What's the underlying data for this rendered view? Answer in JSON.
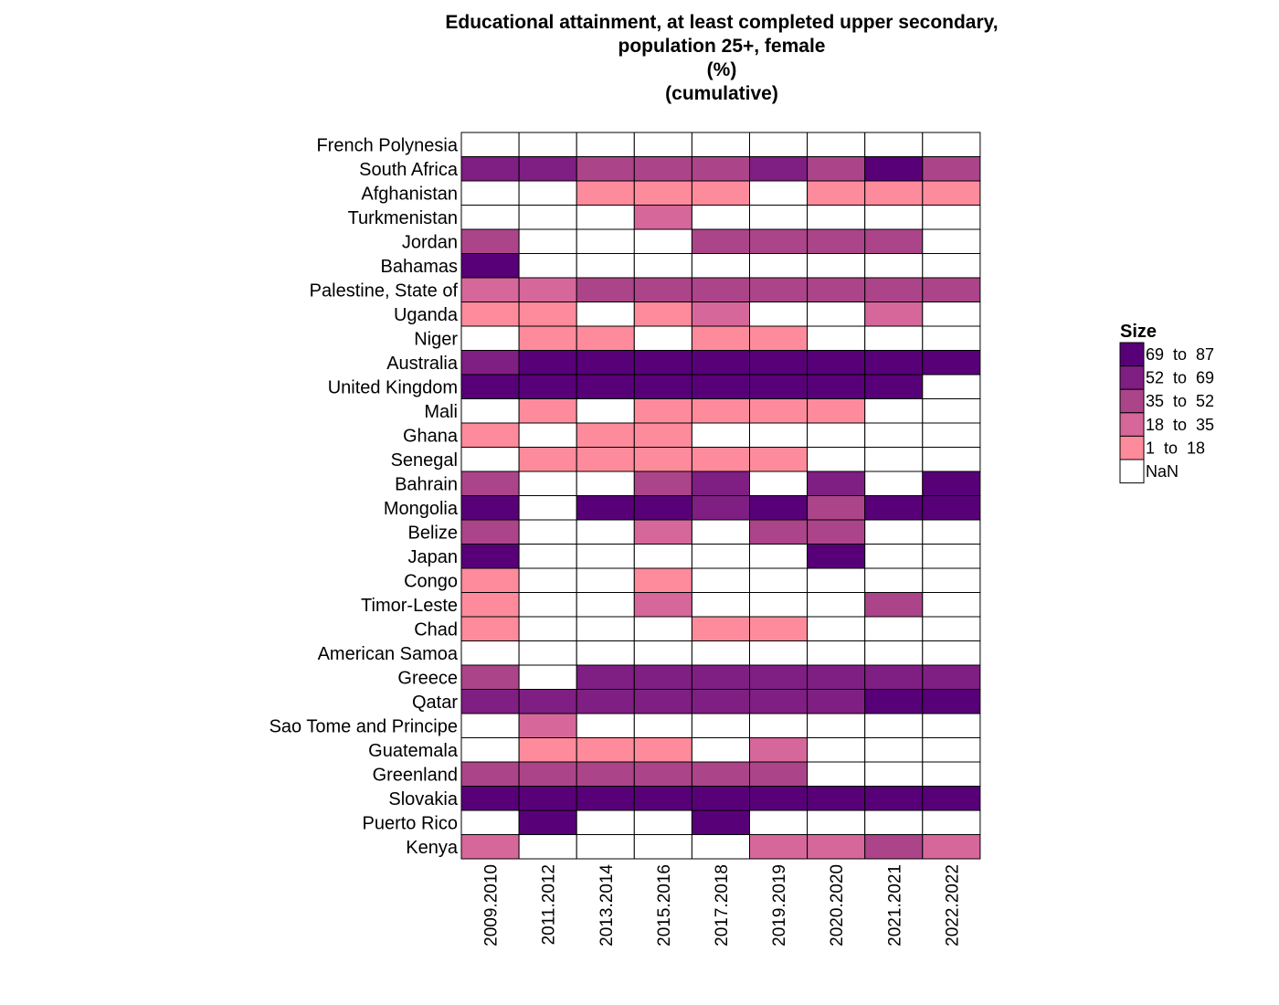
{
  "chart_data": {
    "type": "heatmap",
    "title": [
      "Educational attainment, at least completed upper secondary,",
      "population 25+, female",
      "(%)",
      "(cumulative)"
    ],
    "xlabel": "",
    "ylabel": "",
    "columns": [
      "2009.2010",
      "2011.2012",
      "2013.2014",
      "2015.2016",
      "2017.2018",
      "2019.2019",
      "2020.2020",
      "2021.2021",
      "2022.2022"
    ],
    "rows": [
      "French Polynesia",
      "South Africa",
      "Afghanistan",
      "Turkmenistan",
      "Jordan",
      "Bahamas",
      "Palestine, State of",
      "Uganda",
      "Niger",
      "Australia",
      "United Kingdom",
      "Mali",
      "Ghana",
      "Senegal",
      "Bahrain",
      "Mongolia",
      "Belize",
      "Japan",
      "Congo",
      "Timor-Leste",
      "Chad",
      "American Samoa",
      "Greece",
      "Qatar",
      "Sao Tome and Principe",
      "Guatemala",
      "Greenland",
      "Slovakia",
      "Puerto Rico",
      "Kenya"
    ],
    "bin_index_note_values": "matrix values are legend bin indices: 0=NaN, 1='1 to 18', 2='18 to 35', 3='35 to 52', 4='52 to 69', 5='69 to 87'",
    "values": [
      [
        0,
        0,
        0,
        0,
        0,
        0,
        0,
        0,
        0
      ],
      [
        4,
        4,
        3,
        3,
        3,
        4,
        3,
        5,
        3
      ],
      [
        0,
        0,
        1,
        1,
        1,
        0,
        1,
        1,
        1
      ],
      [
        0,
        0,
        0,
        2,
        0,
        0,
        0,
        0,
        0
      ],
      [
        3,
        0,
        0,
        0,
        3,
        3,
        3,
        3,
        0
      ],
      [
        5,
        0,
        0,
        0,
        0,
        0,
        0,
        0,
        0
      ],
      [
        2,
        2,
        3,
        3,
        3,
        3,
        3,
        3,
        3
      ],
      [
        1,
        1,
        0,
        1,
        2,
        0,
        0,
        2,
        0
      ],
      [
        0,
        1,
        1,
        0,
        1,
        1,
        0,
        0,
        0
      ],
      [
        4,
        5,
        5,
        5,
        5,
        5,
        5,
        5,
        5
      ],
      [
        5,
        5,
        5,
        5,
        5,
        5,
        5,
        5,
        0
      ],
      [
        0,
        1,
        0,
        1,
        1,
        1,
        1,
        0,
        0
      ],
      [
        1,
        0,
        1,
        1,
        0,
        0,
        0,
        0,
        0
      ],
      [
        0,
        1,
        1,
        1,
        1,
        1,
        0,
        0,
        0
      ],
      [
        3,
        0,
        0,
        3,
        4,
        0,
        4,
        0,
        5
      ],
      [
        5,
        0,
        5,
        5,
        4,
        5,
        3,
        5,
        5
      ],
      [
        3,
        0,
        0,
        2,
        0,
        3,
        3,
        0,
        0
      ],
      [
        5,
        0,
        0,
        0,
        0,
        0,
        5,
        0,
        0
      ],
      [
        1,
        0,
        0,
        1,
        0,
        0,
        0,
        0,
        0
      ],
      [
        1,
        0,
        0,
        2,
        0,
        0,
        0,
        3,
        0
      ],
      [
        1,
        0,
        0,
        0,
        1,
        1,
        0,
        0,
        0
      ],
      [
        0,
        0,
        0,
        0,
        0,
        0,
        0,
        0,
        0
      ],
      [
        3,
        0,
        4,
        4,
        4,
        4,
        4,
        4,
        4
      ],
      [
        4,
        4,
        4,
        4,
        4,
        4,
        4,
        5,
        5
      ],
      [
        0,
        2,
        0,
        0,
        0,
        0,
        0,
        0,
        0
      ],
      [
        0,
        1,
        1,
        1,
        0,
        2,
        0,
        0,
        0
      ],
      [
        3,
        3,
        3,
        3,
        3,
        3,
        0,
        0,
        0
      ],
      [
        5,
        5,
        5,
        5,
        5,
        5,
        5,
        5,
        5
      ],
      [
        0,
        5,
        0,
        0,
        5,
        0,
        0,
        0,
        0
      ],
      [
        2,
        0,
        0,
        0,
        0,
        2,
        2,
        3,
        2
      ]
    ],
    "legend": {
      "title": "Size",
      "placement": "right",
      "items": [
        {
          "label": "69  to  87",
          "color": "#570078"
        },
        {
          "label": "52  to  69",
          "color": "#7f1e83"
        },
        {
          "label": "35  to  52",
          "color": "#ac4489"
        },
        {
          "label": "18  to  35",
          "color": "#d6679a"
        },
        {
          "label": "1  to  18",
          "color": "#fe8b9c"
        },
        {
          "label": "NaN",
          "color": "#ffffff"
        }
      ]
    },
    "bin_colors": [
      "#ffffff",
      "#fe8b9c",
      "#d6679a",
      "#ac4489",
      "#7f1e83",
      "#570078"
    ],
    "grid": true
  }
}
